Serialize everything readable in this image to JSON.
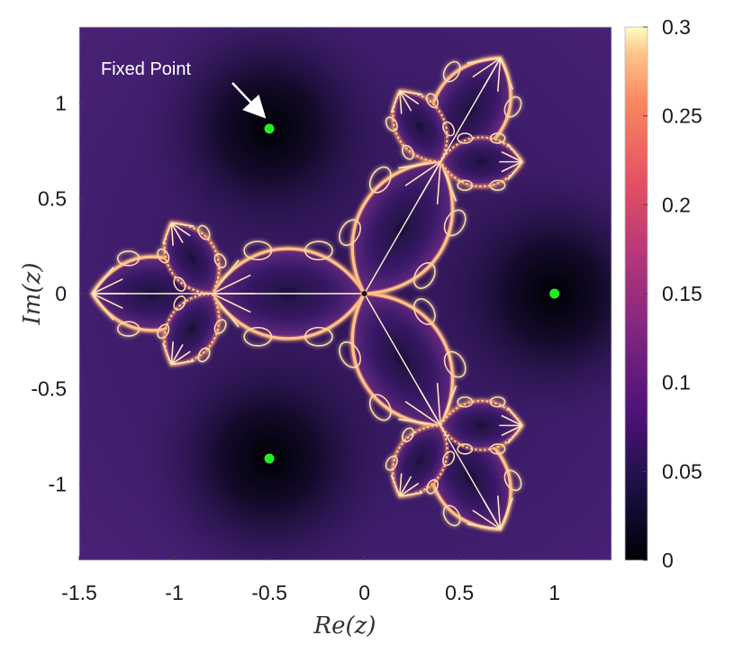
{
  "chart_data": {
    "type": "heatmap",
    "xlabel": "Re(z)",
    "ylabel": "Im(z)",
    "xlim": [
      -1.5,
      1.3
    ],
    "ylim": [
      -1.4,
      1.4
    ],
    "x_ticks": [
      "-1.5",
      "-1",
      "-0.5",
      "0",
      "0.5",
      "1"
    ],
    "x_tick_values": [
      -1.5,
      -1,
      -0.5,
      0,
      0.5,
      1
    ],
    "y_ticks": [
      "1",
      "0.5",
      "0",
      "-0.5",
      "-1"
    ],
    "y_tick_values": [
      1,
      0.5,
      0,
      -0.5,
      -1
    ],
    "colorbar": {
      "range": [
        0,
        0.3
      ],
      "ticks": [
        "0.3",
        "0.25",
        "0.2",
        "0.15",
        "0.1",
        "0.05",
        "0"
      ],
      "tick_values": [
        0.3,
        0.25,
        0.2,
        0.15,
        0.1,
        0.05,
        0
      ],
      "colormap": "magma"
    },
    "fixed_points": [
      {
        "x": 1.0,
        "y": 0.0
      },
      {
        "x": -0.5,
        "y": 0.866
      },
      {
        "x": -0.5,
        "y": -0.866
      }
    ],
    "marker_color": "#22ee22",
    "annotation": {
      "text": "Fixed Point",
      "target": {
        "x": -0.5,
        "y": 0.866
      }
    },
    "grid": false
  }
}
